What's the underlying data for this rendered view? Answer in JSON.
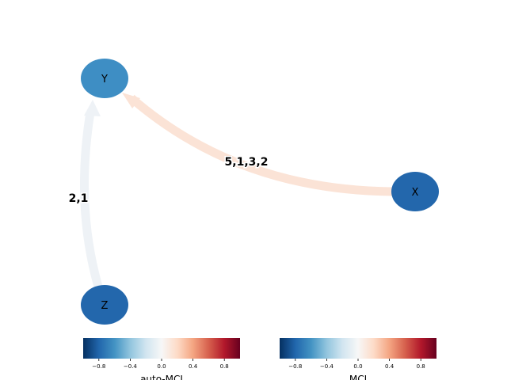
{
  "nodes": [
    {
      "id": "Y",
      "label": "Y",
      "color": "#3e8ec4"
    },
    {
      "id": "X",
      "label": "X",
      "color": "#2367ac"
    },
    {
      "id": "Z",
      "label": "Z",
      "color": "#2367ac"
    }
  ],
  "edges": [
    {
      "from": "X",
      "to": "Y",
      "label": "5,1,3,2",
      "color": "#fbe3d6"
    },
    {
      "from": "Z",
      "to": "Y",
      "label": "2,1",
      "color": "#eef2f6"
    }
  ],
  "colorbars": [
    {
      "title": "auto-MCI",
      "ticks": [
        "−0.8",
        "−0.4",
        "0.0",
        "0.4",
        "0.8"
      ],
      "range": [
        -1,
        1
      ]
    },
    {
      "title": "MCI",
      "ticks": [
        "−0.8",
        "−0.4",
        "0.0",
        "0.4",
        "0.8"
      ],
      "range": [
        -1,
        1
      ]
    }
  ],
  "colormap": {
    "name": "RdBu_r",
    "stops": [
      "#053061",
      "#2166ac",
      "#4393c3",
      "#92c5de",
      "#d1e5f0",
      "#f7f7f7",
      "#fddbc7",
      "#f4a582",
      "#d6604d",
      "#b2182b",
      "#67001f"
    ]
  }
}
